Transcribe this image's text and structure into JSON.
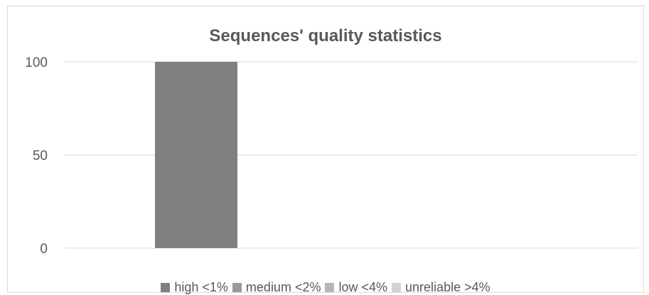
{
  "chart_data": {
    "type": "bar",
    "title": "Sequences' quality statistics",
    "xlabel": "",
    "ylabel": "",
    "ylim": [
      0,
      100
    ],
    "yticks": [
      "0",
      "50",
      "100"
    ],
    "grid": true,
    "legend_position": "bottom",
    "categories": [
      ""
    ],
    "series": [
      {
        "name": "high <1%",
        "color": "#808080",
        "values": [
          100
        ]
      },
      {
        "name": "medium <2%",
        "color": "#9a9a9a",
        "values": [
          0
        ]
      },
      {
        "name": "low <4%",
        "color": "#b5b5b5",
        "values": [
          0
        ]
      },
      {
        "name": "unreliable >4%",
        "color": "#d3d3d3",
        "values": [
          0
        ]
      }
    ]
  }
}
